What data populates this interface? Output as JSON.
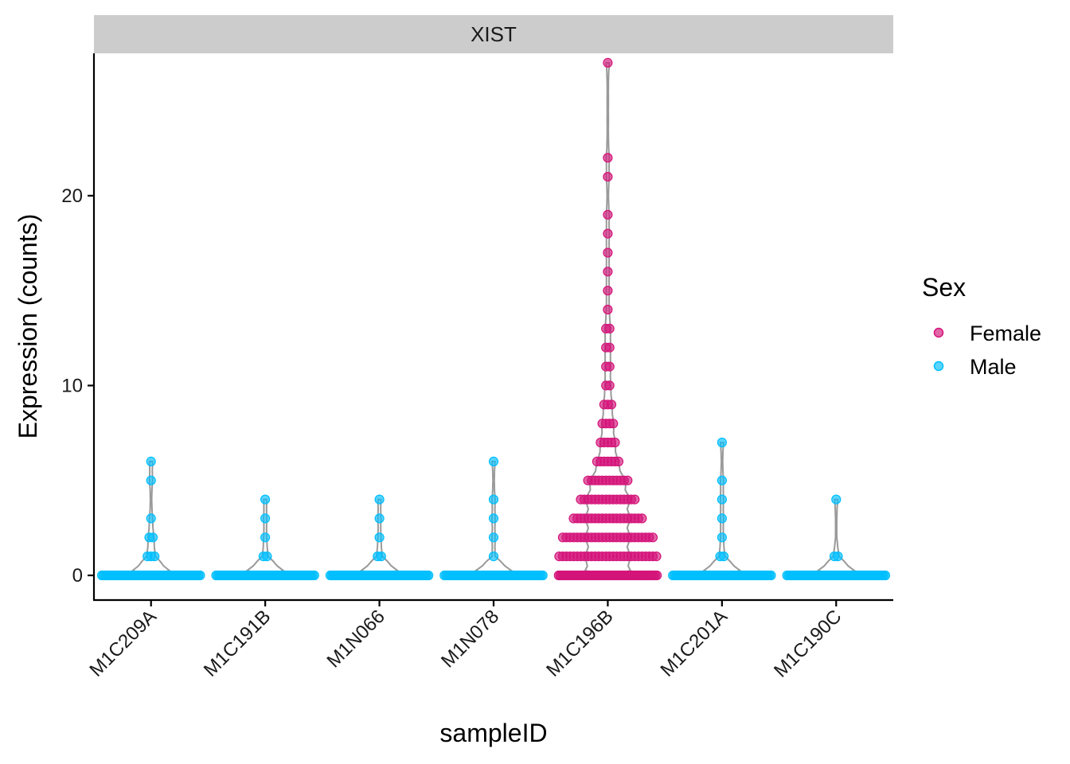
{
  "chart_data": {
    "type": "violin-dotplot",
    "facet_label": "XIST",
    "xlabel": "sampleID",
    "ylabel": "Expression (counts)",
    "ylim": [
      -1.3,
      27.5
    ],
    "yticks": [
      0,
      10,
      20
    ],
    "categories": [
      "M1C209A",
      "M1C191B",
      "M1N066",
      "M1N078",
      "M1C196B",
      "M1C201A",
      "M1C190C"
    ],
    "sex_by_sample": [
      "Male",
      "Male",
      "Male",
      "Male",
      "Female",
      "Male",
      "Male"
    ],
    "legend": {
      "title": "Sex",
      "position": "right",
      "entries": [
        {
          "name": "Female",
          "color": "#D4147A"
        },
        {
          "name": "Male",
          "color": "#00BFFF"
        }
      ]
    },
    "series": [
      {
        "name": "M1C209A",
        "sex": "Male",
        "max": 6,
        "points": [
          {
            "y": 0,
            "n": 60
          },
          {
            "y": 1,
            "n": 3
          },
          {
            "y": 2,
            "n": 2
          },
          {
            "y": 3,
            "n": 1
          },
          {
            "y": 5,
            "n": 1
          },
          {
            "y": 6,
            "n": 1
          }
        ]
      },
      {
        "name": "M1C191B",
        "sex": "Male",
        "max": 4,
        "points": [
          {
            "y": 0,
            "n": 60
          },
          {
            "y": 1,
            "n": 2
          },
          {
            "y": 2,
            "n": 1
          },
          {
            "y": 3,
            "n": 1
          },
          {
            "y": 4,
            "n": 1
          }
        ]
      },
      {
        "name": "M1N066",
        "sex": "Male",
        "max": 4,
        "points": [
          {
            "y": 0,
            "n": 60
          },
          {
            "y": 1,
            "n": 2
          },
          {
            "y": 2,
            "n": 1
          },
          {
            "y": 3,
            "n": 1
          },
          {
            "y": 4,
            "n": 1
          }
        ]
      },
      {
        "name": "M1N078",
        "sex": "Male",
        "max": 6,
        "points": [
          {
            "y": 0,
            "n": 60
          },
          {
            "y": 1,
            "n": 1
          },
          {
            "y": 2,
            "n": 1
          },
          {
            "y": 3,
            "n": 1
          },
          {
            "y": 4,
            "n": 1
          },
          {
            "y": 6,
            "n": 1
          }
        ]
      },
      {
        "name": "M1C196B",
        "sex": "Female",
        "max": 27,
        "points": [
          {
            "y": 0,
            "n": 60
          },
          {
            "y": 1,
            "n": 28
          },
          {
            "y": 2,
            "n": 26
          },
          {
            "y": 3,
            "n": 20
          },
          {
            "y": 4,
            "n": 16
          },
          {
            "y": 5,
            "n": 12
          },
          {
            "y": 6,
            "n": 7
          },
          {
            "y": 7,
            "n": 5
          },
          {
            "y": 8,
            "n": 4
          },
          {
            "y": 9,
            "n": 3
          },
          {
            "y": 10,
            "n": 2
          },
          {
            "y": 11,
            "n": 2
          },
          {
            "y": 12,
            "n": 2
          },
          {
            "y": 13,
            "n": 2
          },
          {
            "y": 14,
            "n": 1
          },
          {
            "y": 15,
            "n": 1
          },
          {
            "y": 16,
            "n": 1
          },
          {
            "y": 17,
            "n": 1
          },
          {
            "y": 18,
            "n": 1
          },
          {
            "y": 19,
            "n": 1
          },
          {
            "y": 21,
            "n": 1
          },
          {
            "y": 22,
            "n": 1
          },
          {
            "y": 27,
            "n": 1
          }
        ]
      },
      {
        "name": "M1C201A",
        "sex": "Male",
        "max": 7,
        "points": [
          {
            "y": 0,
            "n": 60
          },
          {
            "y": 1,
            "n": 2
          },
          {
            "y": 2,
            "n": 1
          },
          {
            "y": 3,
            "n": 1
          },
          {
            "y": 4,
            "n": 1
          },
          {
            "y": 5,
            "n": 1
          },
          {
            "y": 7,
            "n": 1
          }
        ]
      },
      {
        "name": "M1C190C",
        "sex": "Male",
        "max": 4,
        "points": [
          {
            "y": 0,
            "n": 60
          },
          {
            "y": 1,
            "n": 2
          },
          {
            "y": 4,
            "n": 1
          }
        ]
      }
    ]
  }
}
